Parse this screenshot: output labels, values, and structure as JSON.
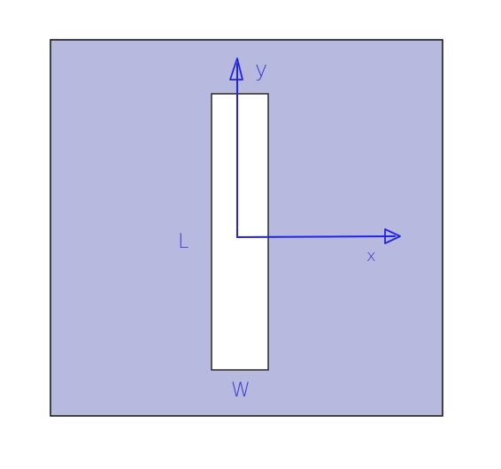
{
  "diagram": {
    "labels": {
      "y_axis": "y",
      "x_axis": "x",
      "length": "L",
      "width": "W"
    },
    "colors": {
      "plate_fill": "#b8b9df",
      "plate_border": "#1c1c1c",
      "slot_fill": "#ffffff",
      "slot_border": "#1c1c1c",
      "axis": "#2323e6",
      "label": "#3b3bd6"
    }
  }
}
